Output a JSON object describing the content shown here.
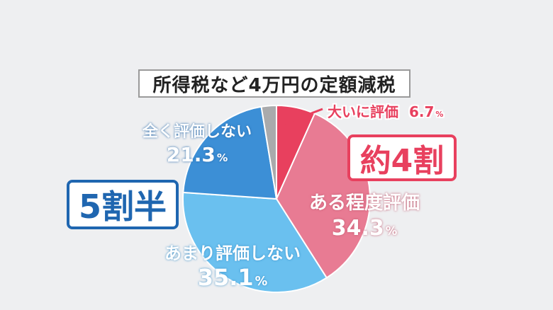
{
  "chart_data": {
    "type": "pie",
    "title": "所得税など4万円の定額減税",
    "categories": [
      "大いに評価",
      "ある程度評価",
      "あまり評価しない",
      "全く評価しない",
      ""
    ],
    "values": [
      6.7,
      34.3,
      35.1,
      21.3,
      2.6
    ],
    "colors": [
      "#e8405e",
      "#e87b93",
      "#6ac0ef",
      "#3c8fd6",
      "#a9aaac"
    ],
    "value_labels": [
      "6.7",
      "34.3",
      "35.1",
      "21.3",
      ""
    ],
    "unit": "%",
    "summary_badges": {
      "positive": "約4割",
      "negative": "5割半"
    }
  }
}
